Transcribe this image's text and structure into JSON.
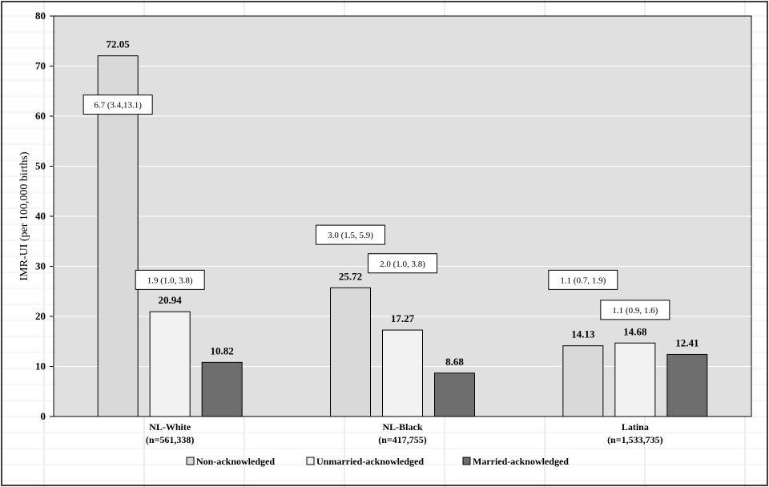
{
  "chart_data": {
    "type": "bar",
    "ylabel": "IMR-UI (per 100,000 births)",
    "ylim": [
      0,
      80
    ],
    "yticks": [
      0,
      10,
      20,
      30,
      40,
      50,
      60,
      70,
      80
    ],
    "grid": true,
    "legend_position": "bottom",
    "categories": [
      {
        "name": "NL-White",
        "n": "(n=561,338)"
      },
      {
        "name": "NL-Black",
        "n": "(n=417,755)"
      },
      {
        "name": "Latina",
        "n": "(n=1,533,735)"
      }
    ],
    "series": [
      {
        "name": "Non-acknowledged",
        "color": "#d9d9d9",
        "values": [
          72.05,
          25.72,
          14.13
        ],
        "labels": [
          "72.05",
          "25.72",
          "14.13"
        ]
      },
      {
        "name": "Unmarried-acknowledged",
        "color": "#f2f2f2",
        "values": [
          20.94,
          17.27,
          14.68
        ],
        "labels": [
          "20.94",
          "17.27",
          "14.68"
        ]
      },
      {
        "name": "Married-acknowledged",
        "color": "#6e6e6e",
        "values": [
          10.82,
          8.68,
          12.41
        ],
        "labels": [
          "10.82",
          "8.68",
          "12.41"
        ]
      }
    ],
    "annotations": [
      {
        "text": "6.7 (3.4,13.1)",
        "category": 0,
        "series": 0,
        "value": 62.3
      },
      {
        "text": "1.9 (1.0, 3.8)",
        "category": 0,
        "series": 1,
        "value": 27.3
      },
      {
        "text": "3.0 (1.5, 5.9)",
        "category": 1,
        "series": 0,
        "value": 36.3
      },
      {
        "text": "2.0 (1.0, 3.8)",
        "category": 1,
        "series": 1,
        "value": 30.6
      },
      {
        "text": "1.1 (0.7, 1.9)",
        "category": 2,
        "series": 0,
        "value": 27.3
      },
      {
        "text": "1.1 (0.9, 1.6)",
        "category": 2,
        "series": 1,
        "value": 21.3
      }
    ]
  },
  "colors": {
    "plot_background": "#e0e0e0",
    "border": "#000000",
    "grid": "#ffffff"
  }
}
